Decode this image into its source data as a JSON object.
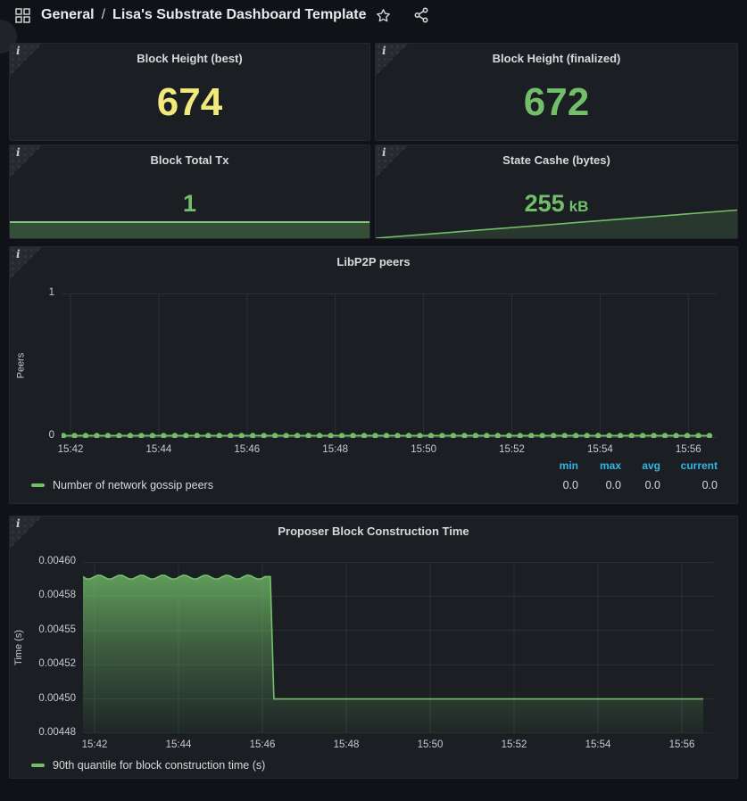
{
  "header": {
    "breadcrumb": {
      "folder": "General",
      "separator": "/",
      "title": "Lisa's Substrate Dashboard Template"
    },
    "icons": {
      "nav": "grid-icon",
      "favorite": "star-icon",
      "share": "share-icon"
    }
  },
  "panel_info_icon": "i",
  "colors": {
    "green": "#73BF69",
    "yellow": "#F2E97C",
    "blue": "#33B5E5",
    "page_bg": "#111217",
    "panel_bg": "#1b1e23",
    "grid": "#2c3036",
    "tick_text": "#c7cad1"
  },
  "stats": [
    {
      "title": "Block Height (best)",
      "value": "674",
      "color": "#F2E97C"
    },
    {
      "title": "Block Height (finalized)",
      "value": "672",
      "color": "#73BF69"
    },
    {
      "title": "Block Total Tx",
      "value": "1",
      "color": "#73BF69",
      "sparkline": {
        "shape": "flat-area",
        "value": 1
      }
    },
    {
      "title": "State Cashe (bytes)",
      "value": "255",
      "unit": "kB",
      "color": "#73BF69",
      "sparkline": {
        "shape": "rising-area",
        "end_label": "255 kB"
      }
    }
  ],
  "chart_data": [
    {
      "type": "line",
      "title": "LibP2P peers",
      "ylabel": "Peers",
      "ylim": [
        0,
        1
      ],
      "y_ticks": [
        "1",
        "0"
      ],
      "x_ticks": [
        "15:42",
        "15:44",
        "15:46",
        "15:48",
        "15:50",
        "15:52",
        "15:54",
        "15:56"
      ],
      "grid": true,
      "legend_position": "bottom",
      "series": [
        {
          "name": "Number of network gossip peers",
          "color": "#73BF69",
          "constant_value": 0,
          "point_count": 59,
          "point_interval": "15s"
        }
      ],
      "legend_stats_headers": [
        "min",
        "max",
        "avg",
        "current"
      ],
      "legend_stats_values": [
        "0.0",
        "0.0",
        "0.0",
        "0.0"
      ]
    },
    {
      "type": "area",
      "title": "Proposer Block Construction Time",
      "ylabel": "Time (s)",
      "ylim": [
        0.004475,
        0.0046
      ],
      "y_ticks": [
        "0.00460",
        "0.00458",
        "0.00455",
        "0.00452",
        "0.00450",
        "0.00448"
      ],
      "x_ticks": [
        "15:42",
        "15:44",
        "15:46",
        "15:48",
        "15:50",
        "15:52",
        "15:54",
        "15:56"
      ],
      "x_range": [
        "15:41:56",
        "15:56:44"
      ],
      "grid": true,
      "legend_position": "bottom",
      "series": [
        {
          "name": "90th quantile for block construction time (s)",
          "color": "#73BF69",
          "segments": [
            {
              "from": "15:41:56",
              "to": "15:46:25",
              "value": 0.00459,
              "ripple": true
            },
            {
              "from": "15:46:25",
              "to": "15:56:30",
              "value": 0.0045,
              "ripple": false
            }
          ]
        }
      ]
    }
  ]
}
